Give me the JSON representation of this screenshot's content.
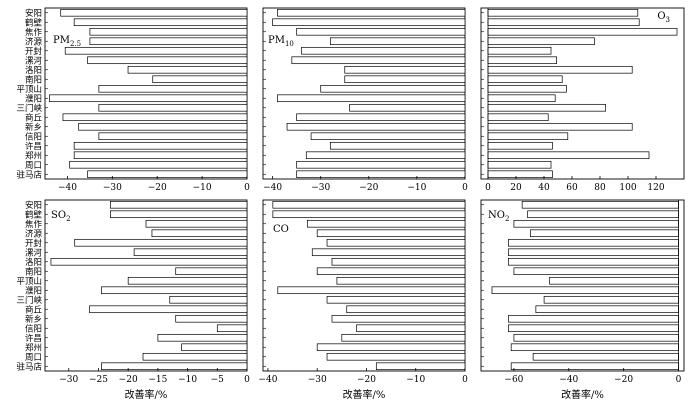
{
  "chart_data": {
    "type": "bar",
    "orientation": "horizontal",
    "categories": [
      "安阳",
      "鹤壁",
      "焦作",
      "济源",
      "开封",
      "漯河",
      "洛阳",
      "南阳",
      "平顶山",
      "濮阳",
      "三门峡",
      "商丘",
      "新乡",
      "信阳",
      "许昌",
      "郑州",
      "周口",
      "驻马店"
    ],
    "panels": [
      {
        "name": "PM2.5",
        "label_main": "PM",
        "label_sub": "2.5",
        "xlabel": "",
        "xlim": [
          -45,
          0
        ],
        "xticks": [
          -40,
          -30,
          -20,
          -10,
          0
        ],
        "xtick_labels": [
          "−40",
          "−30",
          "−20",
          "−10",
          "0"
        ],
        "values": [
          -41.5,
          -38.5,
          -35,
          -35,
          -40.5,
          -35.5,
          -26.5,
          -21,
          -33,
          -44,
          -33,
          -41,
          -37.5,
          -33,
          -38.5,
          -38.5,
          -39.5,
          -35.5
        ]
      },
      {
        "name": "PM10",
        "label_main": "PM",
        "label_sub": "10",
        "xlabel": "",
        "xlim": [
          -42,
          0
        ],
        "xticks": [
          -40,
          -30,
          -20,
          -10,
          0
        ],
        "xtick_labels": [
          "−40",
          "−30",
          "−20",
          "−10",
          "0"
        ],
        "values": [
          -39,
          -40,
          -35,
          -28,
          -34,
          -36,
          -25,
          -25,
          -30,
          -39,
          -24,
          -35,
          -37,
          -32,
          -28,
          -33,
          -35,
          -35
        ]
      },
      {
        "name": "O3",
        "label_main": "O",
        "label_sub": "3",
        "xlabel": "",
        "xlim": [
          -5,
          140
        ],
        "xticks": [
          0,
          20,
          40,
          60,
          80,
          100,
          120
        ],
        "xtick_labels": [
          "0",
          "20",
          "40",
          "60",
          "80",
          "100",
          "120"
        ],
        "values": [
          107,
          108,
          135,
          76,
          45,
          49,
          103,
          53,
          56,
          48,
          84,
          43,
          103,
          57,
          46,
          115,
          45,
          46
        ]
      },
      {
        "name": "SO2",
        "label_main": "SO",
        "label_sub": "2",
        "xlabel": "改善率/%",
        "xlim": [
          -34,
          0
        ],
        "xticks": [
          -30,
          -25,
          -20,
          -15,
          -10,
          -5,
          0
        ],
        "xtick_labels": [
          "−30",
          "−25",
          "−20",
          "−15",
          "−10",
          "−5",
          "0"
        ],
        "values": [
          -23,
          -23,
          -17,
          -16,
          -29,
          -19,
          -33,
          -12,
          -20,
          -24.5,
          -13,
          -26.5,
          -12,
          -5,
          -15,
          -11,
          -17.5,
          -24.5
        ]
      },
      {
        "name": "CO",
        "label_main": "CO",
        "label_sub": "",
        "xlabel": "改善率/%",
        "xlim": [
          -41,
          0
        ],
        "xticks": [
          -40,
          -30,
          -20,
          -10,
          0
        ],
        "xtick_labels": [
          "−40",
          "−30",
          "−20",
          "−10",
          "0"
        ],
        "values": [
          -39,
          -39,
          -32,
          -30,
          -28,
          -31,
          -27,
          -30,
          -26,
          -38,
          -28,
          -24,
          -27,
          -22,
          -25,
          -30,
          -28,
          -18
        ]
      },
      {
        "name": "NO2",
        "label_main": "NO",
        "label_sub": "2",
        "xlabel": "改善率/%",
        "xlim": [
          -72,
          2
        ],
        "xticks": [
          -60,
          -40,
          -20,
          0
        ],
        "xtick_labels": [
          "−60",
          "−40",
          "−20",
          "0"
        ],
        "values": [
          -57,
          -55,
          -60,
          -54,
          -62,
          -62,
          -62,
          -60,
          -47,
          -68,
          -49,
          -52,
          -62,
          -62,
          -60,
          -61,
          -53,
          -61
        ]
      }
    ],
    "grid": false,
    "legend": "none"
  }
}
